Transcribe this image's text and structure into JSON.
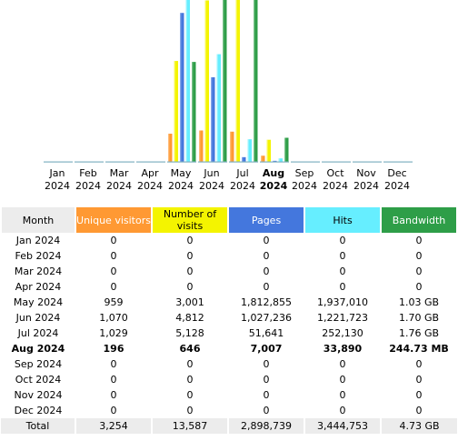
{
  "colors": {
    "unique": "#ff9933",
    "visits": "#f4f400",
    "pages": "#4477dd",
    "hits": "#66eeff",
    "bandwidth": "#2e9e48"
  },
  "chart_data": {
    "type": "bar",
    "months": [
      "Jan",
      "Feb",
      "Mar",
      "Apr",
      "May",
      "Jun",
      "Jul",
      "Aug",
      "Sep",
      "Oct",
      "Nov",
      "Dec"
    ],
    "year": "2024",
    "current_index": 7,
    "series": [
      {
        "key": "unique",
        "values": [
          0,
          0,
          0,
          0,
          959,
          1070,
          1029,
          196,
          0,
          0,
          0,
          0
        ]
      },
      {
        "key": "visits",
        "values": [
          0,
          0,
          0,
          0,
          3001,
          4812,
          5128,
          646,
          0,
          0,
          0,
          0
        ]
      },
      {
        "key": "pages",
        "values": [
          0,
          0,
          0,
          0,
          1812855,
          1027236,
          51641,
          7007,
          0,
          0,
          0,
          0
        ]
      },
      {
        "key": "hits",
        "values": [
          0,
          0,
          0,
          0,
          1937010,
          1221723,
          252130,
          33890,
          0,
          0,
          0,
          0
        ]
      },
      {
        "key": "bandwidth",
        "values": [
          0,
          0,
          0,
          0,
          1.03,
          1.7,
          1.76,
          0.2447,
          0,
          0,
          0,
          0
        ]
      }
    ]
  },
  "table": {
    "headers": {
      "month": "Month",
      "unique": "Unique visitors",
      "visits": "Number of visits",
      "pages": "Pages",
      "hits": "Hits",
      "bandwidth": "Bandwidth"
    },
    "rows": [
      {
        "month": "Jan 2024",
        "unique": "0",
        "visits": "0",
        "pages": "0",
        "hits": "0",
        "bandwidth": "0"
      },
      {
        "month": "Feb 2024",
        "unique": "0",
        "visits": "0",
        "pages": "0",
        "hits": "0",
        "bandwidth": "0"
      },
      {
        "month": "Mar 2024",
        "unique": "0",
        "visits": "0",
        "pages": "0",
        "hits": "0",
        "bandwidth": "0"
      },
      {
        "month": "Apr 2024",
        "unique": "0",
        "visits": "0",
        "pages": "0",
        "hits": "0",
        "bandwidth": "0"
      },
      {
        "month": "May 2024",
        "unique": "959",
        "visits": "3,001",
        "pages": "1,812,855",
        "hits": "1,937,010",
        "bandwidth": "1.03 GB"
      },
      {
        "month": "Jun 2024",
        "unique": "1,070",
        "visits": "4,812",
        "pages": "1,027,236",
        "hits": "1,221,723",
        "bandwidth": "1.70 GB"
      },
      {
        "month": "Jul 2024",
        "unique": "1,029",
        "visits": "5,128",
        "pages": "51,641",
        "hits": "252,130",
        "bandwidth": "1.76 GB"
      },
      {
        "month": "Aug 2024",
        "unique": "196",
        "visits": "646",
        "pages": "7,007",
        "hits": "33,890",
        "bandwidth": "244.73 MB"
      },
      {
        "month": "Sep 2024",
        "unique": "0",
        "visits": "0",
        "pages": "0",
        "hits": "0",
        "bandwidth": "0"
      },
      {
        "month": "Oct 2024",
        "unique": "0",
        "visits": "0",
        "pages": "0",
        "hits": "0",
        "bandwidth": "0"
      },
      {
        "month": "Nov 2024",
        "unique": "0",
        "visits": "0",
        "pages": "0",
        "hits": "0",
        "bandwidth": "0"
      },
      {
        "month": "Dec 2024",
        "unique": "0",
        "visits": "0",
        "pages": "0",
        "hits": "0",
        "bandwidth": "0"
      }
    ],
    "total": {
      "month": "Total",
      "unique": "3,254",
      "visits": "13,587",
      "pages": "2,898,739",
      "hits": "3,444,753",
      "bandwidth": "4.73 GB"
    }
  }
}
